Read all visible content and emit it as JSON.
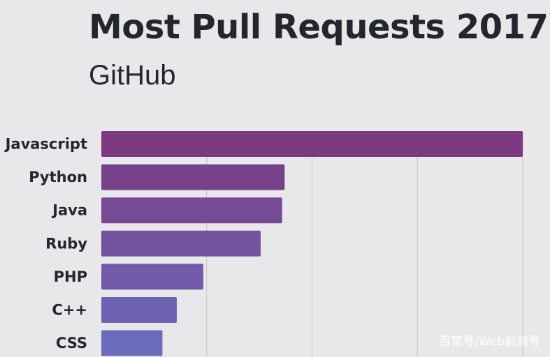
{
  "chart_data": {
    "type": "bar",
    "orientation": "horizontal",
    "title": "Most Pull Requests 2017",
    "subtitle": "GitHub",
    "categories": [
      "Javascript",
      "Python",
      "Java",
      "Ruby",
      "PHP",
      "C++",
      "CSS"
    ],
    "values": [
      100,
      43.5,
      42.9,
      37.8,
      24.2,
      17.9,
      14.5
    ],
    "xlim": [
      0,
      100
    ],
    "grid": true,
    "legend": "none",
    "bar_color_top": "#7b3a80",
    "bar_color_bottom": "#6b6abd"
  },
  "watermark": "百家号/Web前端号"
}
